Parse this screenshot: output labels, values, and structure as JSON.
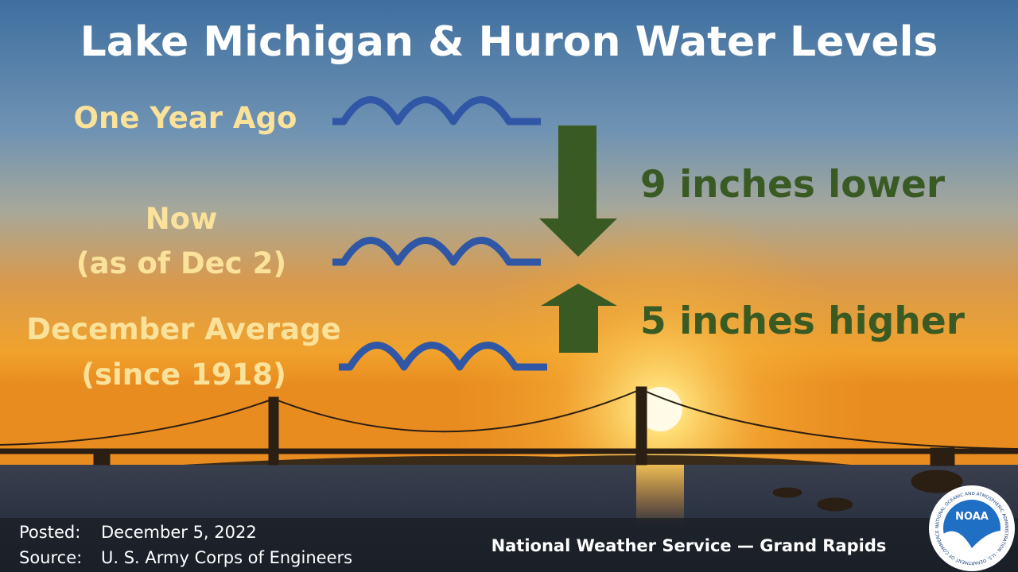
{
  "title": "Lake Michigan & Huron Water Levels",
  "levels": [
    {
      "lines": [
        "One Year Ago"
      ]
    },
    {
      "lines": [
        "Now",
        "(as of Dec 2)"
      ]
    },
    {
      "lines": [
        "December Average",
        "(since 1918)"
      ]
    }
  ],
  "changes": [
    "9 inches lower",
    "5 inches higher"
  ],
  "footer": {
    "posted_label": "Posted:",
    "posted": "December 5, 2022",
    "source_label": "Source:",
    "source": "U. S. Army Corps of Engineers",
    "credit": "National Weather Service — Grand Rapids"
  },
  "logo": {
    "text": "NOAA",
    "ring": "NATIONAL OCEANIC AND ATMOSPHERIC ADMINISTRATION · U.S. DEPARTMENT OF COMMERCE"
  }
}
